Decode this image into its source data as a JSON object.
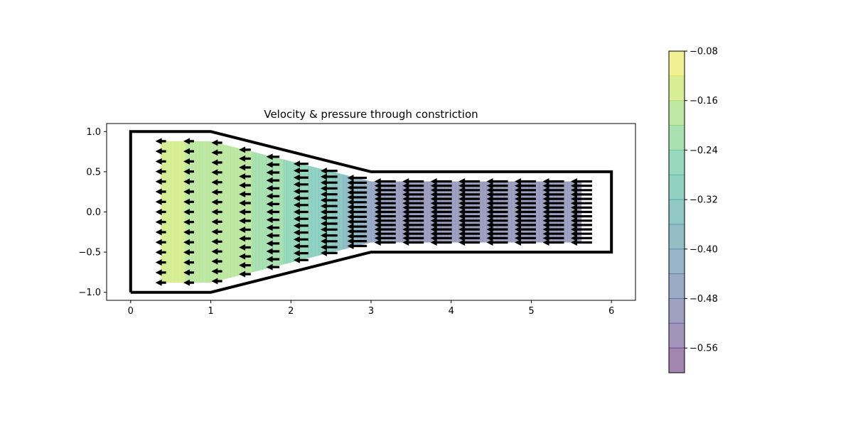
{
  "chart_data": {
    "type": "quiver",
    "title": "Velocity & pressure through constriction",
    "xlabel": "",
    "ylabel": "",
    "xlim": [
      -0.3,
      6.3
    ],
    "ylim": [
      -1.1,
      1.1
    ],
    "x_ticks": [
      "0",
      "1",
      "2",
      "3",
      "4",
      "5",
      "6"
    ],
    "x_tick_values": [
      0,
      1,
      2,
      3,
      4,
      5,
      6
    ],
    "y_ticks": [
      "1.0",
      "0.5",
      "0.0",
      "−0.5",
      "−1.0"
    ],
    "y_tick_values": [
      1.0,
      0.5,
      0.0,
      -0.5,
      -1.0
    ],
    "grid": false,
    "legend": "none",
    "geometry": {
      "outline": [
        [
          0,
          -1
        ],
        [
          0,
          1
        ],
        [
          1,
          1
        ],
        [
          3,
          0.5
        ],
        [
          6,
          0.5
        ],
        [
          6,
          -0.5
        ],
        [
          3,
          -0.5
        ],
        [
          1,
          -1
        ],
        [
          0,
          -1
        ]
      ]
    },
    "pressure_contour": {
      "x": [
        0.375,
        1.0,
        1.5,
        2.0,
        2.5,
        3.0,
        3.5,
        4.0,
        4.5,
        5.0,
        5.625
      ],
      "values": [
        -0.15,
        -0.17,
        -0.2,
        -0.25,
        -0.32,
        -0.45,
        -0.5,
        -0.51,
        -0.51,
        -0.51,
        -0.51
      ],
      "levels": [
        -0.6,
        -0.56,
        -0.52,
        -0.48,
        -0.44,
        -0.4,
        -0.36,
        -0.32,
        -0.28,
        -0.24,
        -0.2,
        -0.16,
        -0.12,
        -0.08
      ],
      "colormap": "viridis",
      "alpha": 0.5
    },
    "quiver": {
      "x_start": 0.375,
      "x_end": 5.625,
      "columns": 16,
      "rows": 15,
      "u": "-(width of channel at x = 1) / (width of channel at x)",
      "v": 0,
      "color": "#000000"
    },
    "colorbar": {
      "vmin": -0.6,
      "vmax": -0.08,
      "ticks": [
        "−0.08",
        "−0.16",
        "−0.24",
        "−0.32",
        "−0.40",
        "−0.48",
        "−0.56"
      ],
      "tick_values": [
        -0.08,
        -0.16,
        -0.24,
        -0.32,
        -0.4,
        -0.48,
        -0.56
      ]
    }
  }
}
